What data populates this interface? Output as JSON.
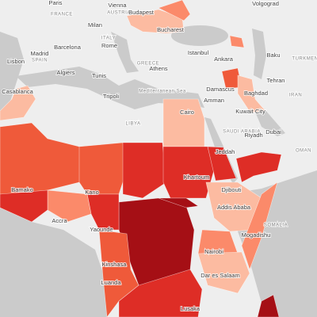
{
  "labels": [
    {
      "text": "Paris",
      "kind": "city"
    },
    {
      "text": "FRANCE",
      "kind": "country"
    },
    {
      "text": "AUSTRIA",
      "kind": "country"
    },
    {
      "text": "Vienna",
      "kind": "city"
    },
    {
      "text": "Budapest",
      "kind": "city"
    },
    {
      "text": "Volgograd",
      "kind": "city"
    },
    {
      "text": "Milan",
      "kind": "city"
    },
    {
      "text": "Bucharest",
      "kind": "city"
    },
    {
      "text": "ITALY",
      "kind": "country"
    },
    {
      "text": "Madrid",
      "kind": "city"
    },
    {
      "text": "SPAIN",
      "kind": "country"
    },
    {
      "text": "Barcelona",
      "kind": "city"
    },
    {
      "text": "Rome",
      "kind": "city"
    },
    {
      "text": "Istanbul",
      "kind": "city"
    },
    {
      "text": "Ankara",
      "kind": "city"
    },
    {
      "text": "Baku",
      "kind": "city"
    },
    {
      "text": "TURKMEN",
      "kind": "country"
    },
    {
      "text": "Lisbon",
      "kind": "city"
    },
    {
      "text": "Algiers",
      "kind": "city"
    },
    {
      "text": "Tunis",
      "kind": "city"
    },
    {
      "text": "GREECE",
      "kind": "country"
    },
    {
      "text": "Athens",
      "kind": "city"
    },
    {
      "text": "Tehran",
      "kind": "city"
    },
    {
      "text": "Casablanca",
      "kind": "city"
    },
    {
      "text": "Tripoli",
      "kind": "city"
    },
    {
      "text": "Mediterranean Sea",
      "kind": "country"
    },
    {
      "text": "Damascus",
      "kind": "city"
    },
    {
      "text": "Baghdad",
      "kind": "city"
    },
    {
      "text": "IRAN",
      "kind": "country"
    },
    {
      "text": "Amman",
      "kind": "city"
    },
    {
      "text": "Cairo",
      "kind": "city"
    },
    {
      "text": "LIBYA",
      "kind": "country"
    },
    {
      "text": "Kuwait City",
      "kind": "city"
    },
    {
      "text": "SAUDI ARABIA",
      "kind": "country"
    },
    {
      "text": "Dubai",
      "kind": "city"
    },
    {
      "text": "Riyadh",
      "kind": "city"
    },
    {
      "text": "OMAN",
      "kind": "country"
    },
    {
      "text": "Jeddah",
      "kind": "city"
    },
    {
      "text": "Khartoum",
      "kind": "city"
    },
    {
      "text": "Bamako",
      "kind": "city"
    },
    {
      "text": "Kano",
      "kind": "city"
    },
    {
      "text": "Djibouti",
      "kind": "city"
    },
    {
      "text": "Addis Ababa",
      "kind": "city"
    },
    {
      "text": "Accra",
      "kind": "city"
    },
    {
      "text": "Yaounde",
      "kind": "city"
    },
    {
      "text": "SOMALIA",
      "kind": "country"
    },
    {
      "text": "Mogadishu",
      "kind": "city"
    },
    {
      "text": "Nairobi",
      "kind": "city"
    },
    {
      "text": "Kinshasa",
      "kind": "city"
    },
    {
      "text": "Dar es Salaam",
      "kind": "city"
    },
    {
      "text": "Luanda",
      "kind": "city"
    },
    {
      "text": "Lusaka",
      "kind": "city"
    }
  ]
}
